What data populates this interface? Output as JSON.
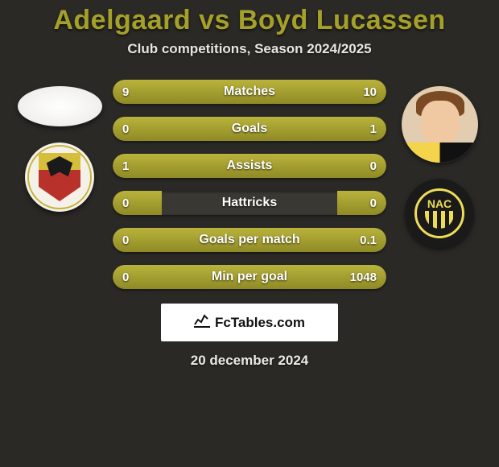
{
  "title": "Adelgaard vs Boyd Lucassen",
  "subtitle": "Club competitions, Season 2024/2025",
  "colors": {
    "accent": "#a4a029",
    "bar_fill_top": "#b9b33c",
    "bar_fill_bottom": "#8f8a25",
    "bar_bg": "#3a3832",
    "page_bg": "#2a2926",
    "text": "#ffffff"
  },
  "left_side": {
    "avatar": {
      "kind": "placeholder-oval"
    },
    "club": {
      "name": "go-ahead-eagles",
      "bg": "#f4f1e9"
    }
  },
  "right_side": {
    "avatar": {
      "kind": "photo"
    },
    "club": {
      "name": "nac",
      "label": "NAC",
      "bg": "#1a1a1a"
    }
  },
  "bars": [
    {
      "label": "Matches",
      "left": "9",
      "right": "10",
      "left_pct": 47,
      "right_pct": 53
    },
    {
      "label": "Goals",
      "left": "0",
      "right": "1",
      "left_pct": 18,
      "right_pct": 82
    },
    {
      "label": "Assists",
      "left": "1",
      "right": "0",
      "left_pct": 82,
      "right_pct": 18
    },
    {
      "label": "Hattricks",
      "left": "0",
      "right": "0",
      "left_pct": 18,
      "right_pct": 18
    },
    {
      "label": "Goals per match",
      "left": "0",
      "right": "0.1",
      "left_pct": 18,
      "right_pct": 82
    },
    {
      "label": "Min per goal",
      "left": "0",
      "right": "1048",
      "left_pct": 18,
      "right_pct": 82
    }
  ],
  "source": {
    "label": "FcTables.com"
  },
  "date": "20 december 2024"
}
